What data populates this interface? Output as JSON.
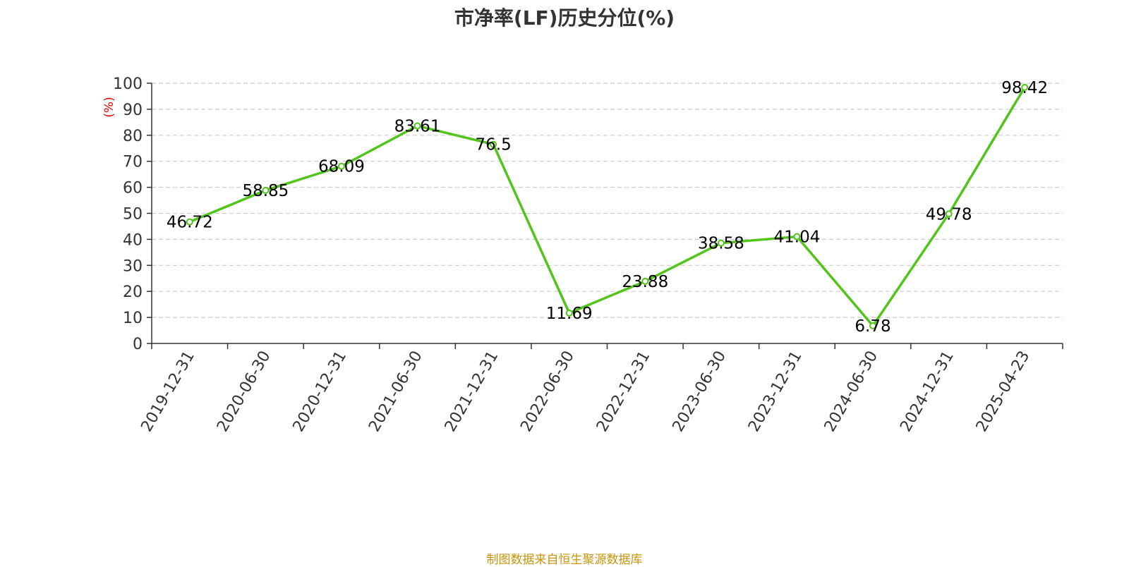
{
  "chart_data": {
    "type": "line",
    "title": "市净率(LF)历史分位(%)",
    "ylabel": "(%)",
    "xlabel": "",
    "ylim": [
      0,
      100
    ],
    "yticks": [
      0,
      10,
      20,
      30,
      40,
      50,
      60,
      70,
      80,
      90,
      100
    ],
    "grid": true,
    "categories": [
      "2019-12-31",
      "2020-06-30",
      "2020-12-31",
      "2021-06-30",
      "2021-12-31",
      "2022-06-30",
      "2022-12-31",
      "2023-06-30",
      "2023-12-31",
      "2024-06-30",
      "2024-12-31",
      "2025-04-23"
    ],
    "series": [
      {
        "values": [
          46.72,
          58.85,
          68.09,
          83.61,
          76.5,
          11.69,
          23.88,
          38.58,
          41.04,
          6.78,
          49.78,
          98.42
        ],
        "labels": [
          "46.72",
          "58.85",
          "68.09",
          "83.61",
          "76.5",
          "11.69",
          "23.88",
          "38.58",
          "41.04",
          "6.78",
          "49.78",
          "98.42"
        ]
      }
    ]
  },
  "colors": {
    "line": "#52c41a",
    "ylabel": "#e60000",
    "footer": "#c8940a",
    "axis": "#333333",
    "grid": "#cccccc"
  },
  "footer": {
    "source": "制图数据来自恒生聚源数据库"
  }
}
